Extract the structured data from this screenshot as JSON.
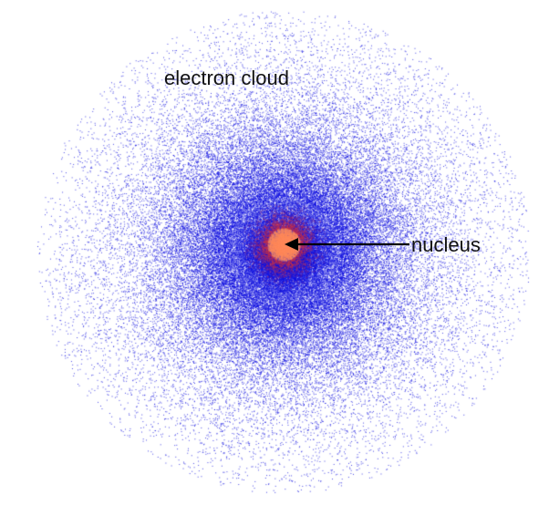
{
  "labels": {
    "electron_cloud": "electron cloud",
    "nucleus": "nucleus"
  },
  "colors": {
    "background": "#ffffff",
    "electron": "#1010e0",
    "nucleus_core": "#ff8a5c",
    "nucleus_edge": "#c8324a",
    "text": "#111111",
    "arrow": "#000000"
  },
  "icons": {
    "arrow": "arrow-left-icon"
  }
}
